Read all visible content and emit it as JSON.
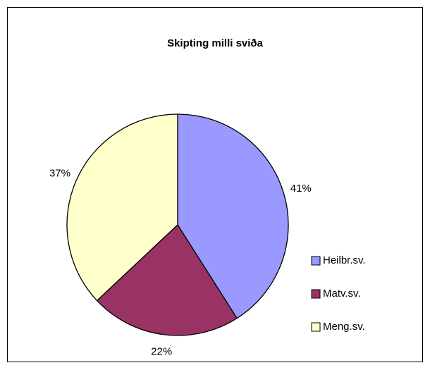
{
  "chart_data": {
    "type": "pie",
    "title": "Skipting milli sviða",
    "categories": [
      "Heilbr.sv.",
      "Matv.sv.",
      "Meng.sv."
    ],
    "values": [
      41,
      22,
      37
    ],
    "value_labels": [
      "41%",
      "22%",
      "37%"
    ],
    "colors": [
      "#9999ff",
      "#993366",
      "#ffffcc"
    ],
    "legend": "right"
  }
}
